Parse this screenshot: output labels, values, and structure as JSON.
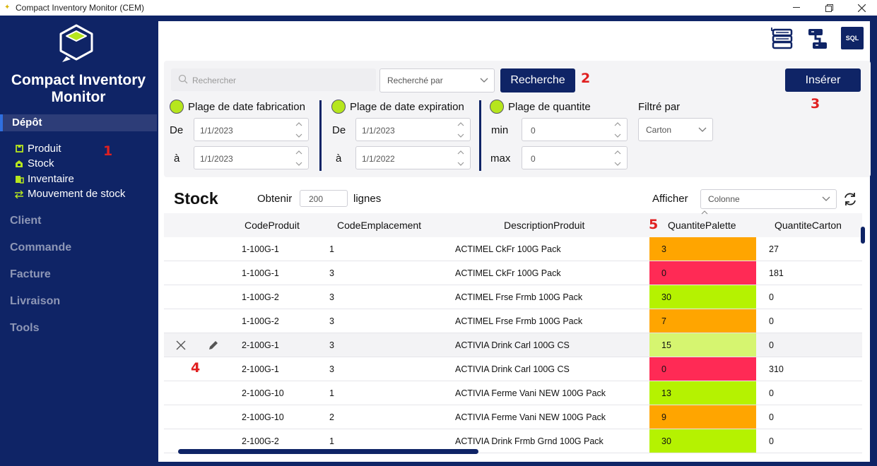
{
  "window": {
    "title": "Compact Inventory Monitor (CEM)"
  },
  "sidebar": {
    "brand": "Compact Inventory Monitor",
    "active_section": "Dépôt",
    "sub_items": [
      {
        "label": "Produit",
        "icon": "box-icon"
      },
      {
        "label": "Stock",
        "icon": "stock-icon"
      },
      {
        "label": "Inventaire",
        "icon": "inventory-icon"
      },
      {
        "label": "Mouvement de stock",
        "icon": "swap-icon"
      }
    ],
    "sections": [
      "Client",
      "Commande",
      "Facture",
      "Livraison",
      "Tools"
    ]
  },
  "toolbar": {
    "sql_label": "SQL"
  },
  "search": {
    "placeholder": "Rechercher",
    "by_placeholder": "Recherché par",
    "button_label": "Recherche",
    "insert_label": "Insérer"
  },
  "filters": {
    "fabrication": {
      "title": "Plage de date fabrication",
      "from_label": "De",
      "to_label": "à",
      "from": "1/1/2023",
      "to": "1/1/2023"
    },
    "expiration": {
      "title": "Plage de date expiration",
      "from_label": "De",
      "to_label": "à",
      "from": "1/1/2023",
      "to": "1/1/2022"
    },
    "quantity": {
      "title": "Plage de quantite",
      "min_label": "min",
      "max_label": "max",
      "min": "0",
      "max": "0"
    },
    "filter_by": {
      "title": "Filtré par",
      "value": "Carton"
    }
  },
  "stock": {
    "title": "Stock",
    "obtain_label": "Obtenir",
    "count": "200",
    "lines_label": "lignes",
    "show_label": "Afficher",
    "column_placeholder": "Colonne"
  },
  "table": {
    "columns": [
      "CodeProduit",
      "CodeEmplacement",
      "DescriptionProduit",
      "QuantitePalette",
      "QuantiteCarton"
    ],
    "rows": [
      {
        "code": "1-100G-1",
        "emplacement": "1",
        "description": "ACTIMEL CkFr 100G Pack",
        "palette": "3",
        "carton": "27",
        "status": "warning"
      },
      {
        "code": "1-100G-1",
        "emplacement": "3",
        "description": "ACTIMEL CkFr 100G Pack",
        "palette": "0",
        "carton": "181",
        "status": "empty"
      },
      {
        "code": "1-100G-2",
        "emplacement": "3",
        "description": "ACTIMEL Frse Frmb 100G Pack",
        "palette": "30",
        "carton": "0",
        "status": "ok"
      },
      {
        "code": "1-100G-2",
        "emplacement": "3",
        "description": "ACTIMEL Frse Frmb 100G Pack",
        "palette": "7",
        "carton": "0",
        "status": "warning"
      },
      {
        "code": "2-100G-1",
        "emplacement": "3",
        "description": "ACTIVIA Drink Carl 100G CS",
        "palette": "15",
        "carton": "0",
        "status": "ok-light"
      },
      {
        "code": "2-100G-1",
        "emplacement": "3",
        "description": "ACTIVIA Drink Carl 100G CS",
        "palette": "0",
        "carton": "310",
        "status": "empty"
      },
      {
        "code": "2-100G-10",
        "emplacement": "1",
        "description": "ACTIVIA Ferme Vani  NEW 100G Pack",
        "palette": "13",
        "carton": "0",
        "status": "ok"
      },
      {
        "code": "2-100G-10",
        "emplacement": "2",
        "description": "ACTIVIA Ferme Vani  NEW 100G Pack",
        "palette": "9",
        "carton": "0",
        "status": "warning"
      },
      {
        "code": "2-100G-2",
        "emplacement": "1",
        "description": "ACTIVIA Drink Frmb Grnd 100G Pack",
        "palette": "30",
        "carton": "0",
        "status": "ok"
      }
    ]
  },
  "status_colors": {
    "warning": "#ffa500",
    "empty": "#ff2a55",
    "ok": "#b5f201",
    "ok-light": "#d6f570"
  },
  "colors": {
    "brand": "#0f2466",
    "accent": "#b6e61e"
  },
  "annotations": [
    "1",
    "2",
    "3",
    "4",
    "5"
  ]
}
